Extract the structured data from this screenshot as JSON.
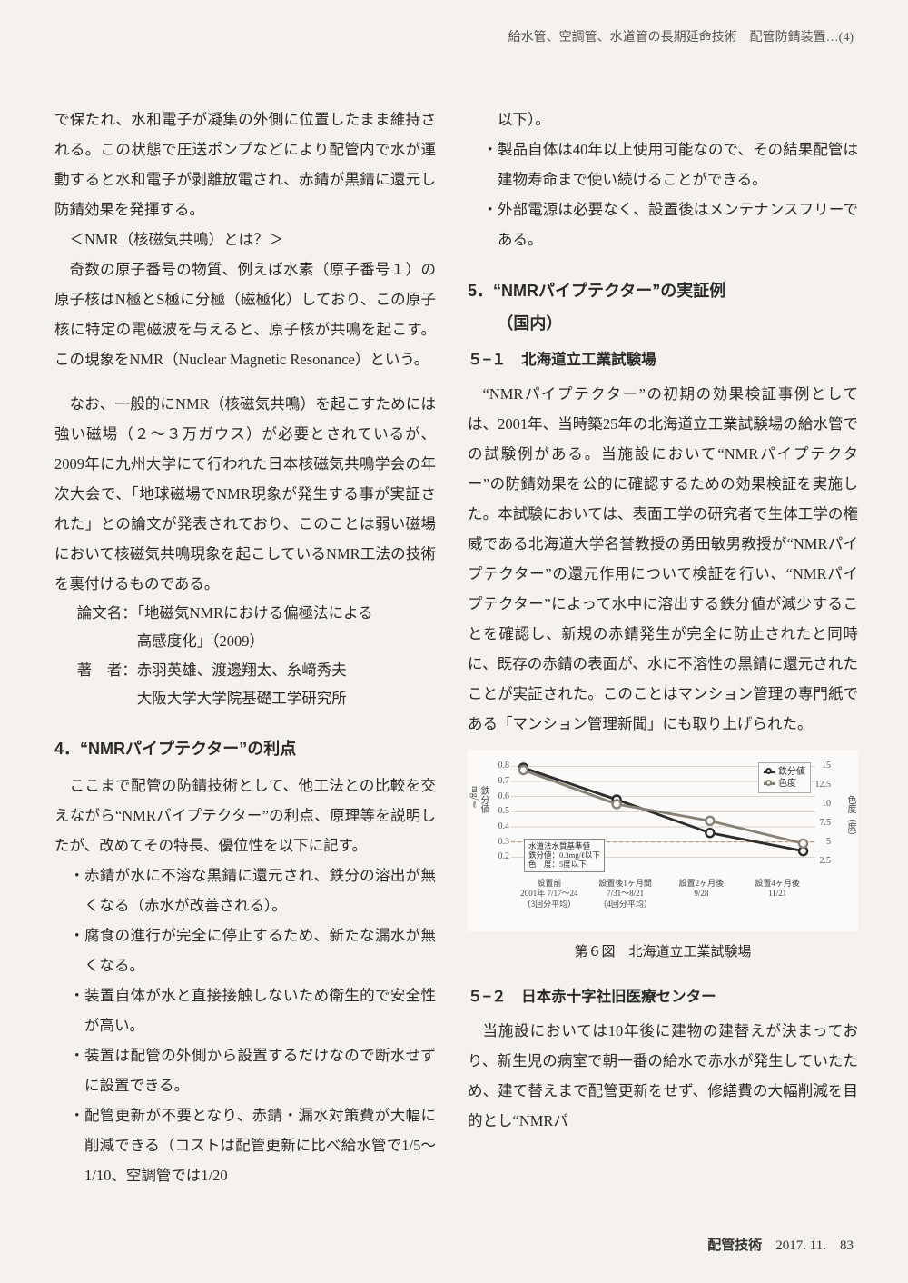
{
  "header_note": "給水管、空調管、水道管の長期延命技術　配管防錆装置…(4)",
  "left": {
    "p1": "で保たれ、水和電子が凝集の外側に位置したまま維持される。この状態で圧送ポンプなどにより配管内で水が運動すると水和電子が剥離放電され、赤錆が黒錆に還元し防錆効果を発揮する。",
    "nmr_q": "＜NMR（核磁気共鳴）とは？＞",
    "p2": "奇数の原子番号の物質、例えば水素（原子番号１）の原子核はN極とS極に分極（磁極化）しており、この原子核に特定の電磁波を与えると、原子核が共鳴を起こす。この現象をNMR（Nuclear Magnetic Resonance）という。",
    "p3": "なお、一般的にNMR（核磁気共鳴）を起こすためには強い磁場（２～３万ガウス）が必要とされているが、2009年に九州大学にて行われた日本核磁気共鳴学会の年次大会で、「地球磁場でNMR現象が発生する事が実証された」との論文が発表されており、このことは弱い磁場において核磁気共鳴現象を起こしているNMR工法の技術を裏付けるものである。",
    "ref_title": "論文名：「地磁気NMRにおける偏極法による高感度化」（2009）",
    "ref_title_line2": "高感度化」（2009）",
    "ref_title_line1": "論文名：「地磁気NMRにおける偏極法による",
    "ref_auth1": "著　者：赤羽英雄、渡邊翔太、糸﨑秀夫",
    "ref_auth2": "大阪大学大学院基礎工学研究所",
    "sec4": "4．“NMRパイプテクター”の利点",
    "p4": "ここまで配管の防錆技術として、他工法との比較を交えながら“NMRパイプテクター”の利点、原理等を説明したが、改めてその特長、優位性を以下に記す。",
    "b1": "赤錆が水に不溶な黒錆に還元され、鉄分の溶出が無くなる（赤水が改善される）。",
    "b2": "腐食の進行が完全に停止するため、新たな漏水が無くなる。",
    "b3": "装置自体が水と直接接触しないため衛生的で安全性が高い。",
    "b4": "装置は配管の外側から設置するだけなので断水せずに設置できる。",
    "b5": "配管更新が不要となり、赤錆・漏水対策費が大幅に削減できる（コストは配管更新に比べ給水管で1/5～1/10、空調管では1/20"
  },
  "right": {
    "p0a": "以下）。",
    "b6": "製品自体は40年以上使用可能なので、その結果配管は建物寿命まで使い続けることができる。",
    "b7": "外部電源は必要なく、設置後はメンテナンスフリーである。",
    "sec5": "5．“NMRパイプテクター”の実証例（国内）",
    "sec5_l1": "5．“NMRパイプテクター”の実証例",
    "sec5_l2": "（国内）",
    "sub51": "５−１　北海道立工業試験場",
    "p5": "“NMRパイプテクター”の初期の効果検証事例としては、2001年、当時築25年の北海道立工業試験場の給水管での試験例がある。当施設において“NMRパイプテクター”の防錆効果を公的に確認するための効果検証を実施した。本試験においては、表面工学の研究者で生体工学の権威である北海道大学名誉教授の勇田敏男教授が“NMRパイプテクター”の還元作用について検証を行い、“NMRパイプテクター”によって水中に溶出する鉄分値が減少することを確認し、新規の赤錆発生が完全に防止されたと同時に、既存の赤錆の表面が、水に不溶性の黒錆に還元されたことが実証された。このことはマンション管理の専門紙である「マンション管理新聞」にも取り上げられた。",
    "chart": {
      "caption": "第６図　北海道立工業試験場",
      "series": [
        {
          "name": "鉄分値",
          "color": "#2b2b2b",
          "values": [
            0.79,
            0.58,
            0.36,
            0.24
          ]
        },
        {
          "name": "色度",
          "color": "#8a8276",
          "values": [
            14.5,
            10.0,
            7.8,
            4.8
          ]
        }
      ],
      "y_left": {
        "label": "鉄分値",
        "unit": "mg/ℓ",
        "ticks": [
          0.2,
          0.3,
          0.4,
          0.5,
          0.6,
          0.7,
          0.8
        ],
        "min": 0.1,
        "max": 0.85
      },
      "y_right": {
        "label": "色度",
        "unit": "度",
        "ticks": [
          2.5,
          5,
          7.5,
          10,
          12.5,
          15
        ],
        "min": 1,
        "max": 16
      },
      "x_labels": [
        {
          "l1": "設置前",
          "l2": "2001年 7/17～24",
          "l3": "（3回分平均）"
        },
        {
          "l1": "設置後1ヶ月間",
          "l2": "7/31～8/21",
          "l3": "（4回分平均）"
        },
        {
          "l1": "設置2ヶ月後",
          "l2": "9/28",
          "l3": ""
        },
        {
          "l1": "設置4ヶ月後",
          "l2": "11/21",
          "l3": ""
        }
      ],
      "ref_lines": [
        {
          "label": "0.3",
          "y": 0.3,
          "axis": "left"
        },
        {
          "label": "5",
          "y": 5,
          "axis": "right"
        }
      ],
      "note": [
        "水道法水質基準値",
        "鉄分値：0.3mg/ℓ以下",
        "色　度：5度以下"
      ],
      "legend": [
        "鉄分値",
        "色度"
      ],
      "grid_color": "#c7c0b6",
      "background_color": "#fcfaf8"
    },
    "sub52": "５−２　日本赤十字社旧医療センター",
    "p6": "当施設においては10年後に建物の建替えが決まっており、新生児の病室で朝一番の給水で赤水が発生していたため、建て替えまで配管更新をせず、修繕費の大幅削減を目的とし“NMRパ"
  },
  "footer": {
    "journal": "配管技術",
    "issue": "2017. 11.",
    "page": "83"
  }
}
